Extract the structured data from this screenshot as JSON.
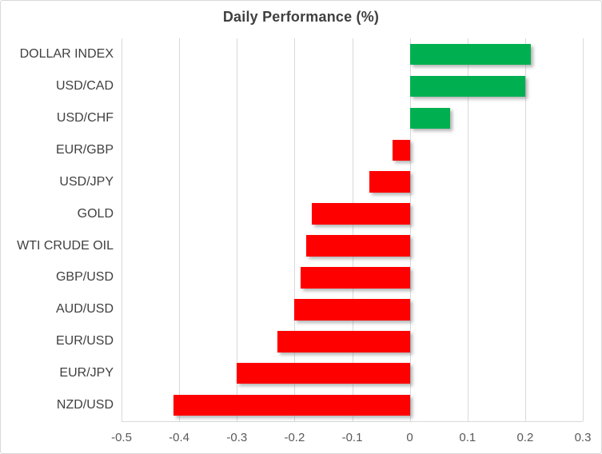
{
  "window": {
    "background": "#FFFFFF",
    "border_color": "#D9D9D9"
  },
  "chart_data": {
    "type": "bar",
    "orientation": "horizontal",
    "title": "Daily Performance (%)",
    "categories": [
      "DOLLAR INDEX",
      "USD/CAD",
      "USD/CHF",
      "EUR/GBP",
      "USD/JPY",
      "GOLD",
      "WTI CRUDE OIL",
      "GBP/USD",
      "AUD/USD",
      "EUR/USD",
      "EUR/JPY",
      "NZD/USD"
    ],
    "values": [
      0.21,
      0.2,
      0.07,
      -0.03,
      -0.07,
      -0.17,
      -0.18,
      -0.19,
      -0.2,
      -0.23,
      -0.3,
      -0.41
    ],
    "xlabel": "",
    "ylabel": "",
    "xlim": [
      -0.5,
      0.3
    ],
    "xticks": [
      -0.5,
      -0.4,
      -0.3,
      -0.2,
      -0.1,
      0,
      0.1,
      0.2,
      0.3
    ],
    "xtick_labels": [
      "-0.5",
      "-0.4",
      "-0.3",
      "-0.2",
      "-0.1",
      "0",
      "0.1",
      "0.2",
      "0.3"
    ],
    "grid": true,
    "legend": "none",
    "colors": {
      "positive": "#00B050",
      "negative": "#FF0000",
      "gridline": "#D9D9D9",
      "title_text": "#3F3F3F",
      "category_text": "#404040",
      "tick_text": "#595959"
    }
  }
}
